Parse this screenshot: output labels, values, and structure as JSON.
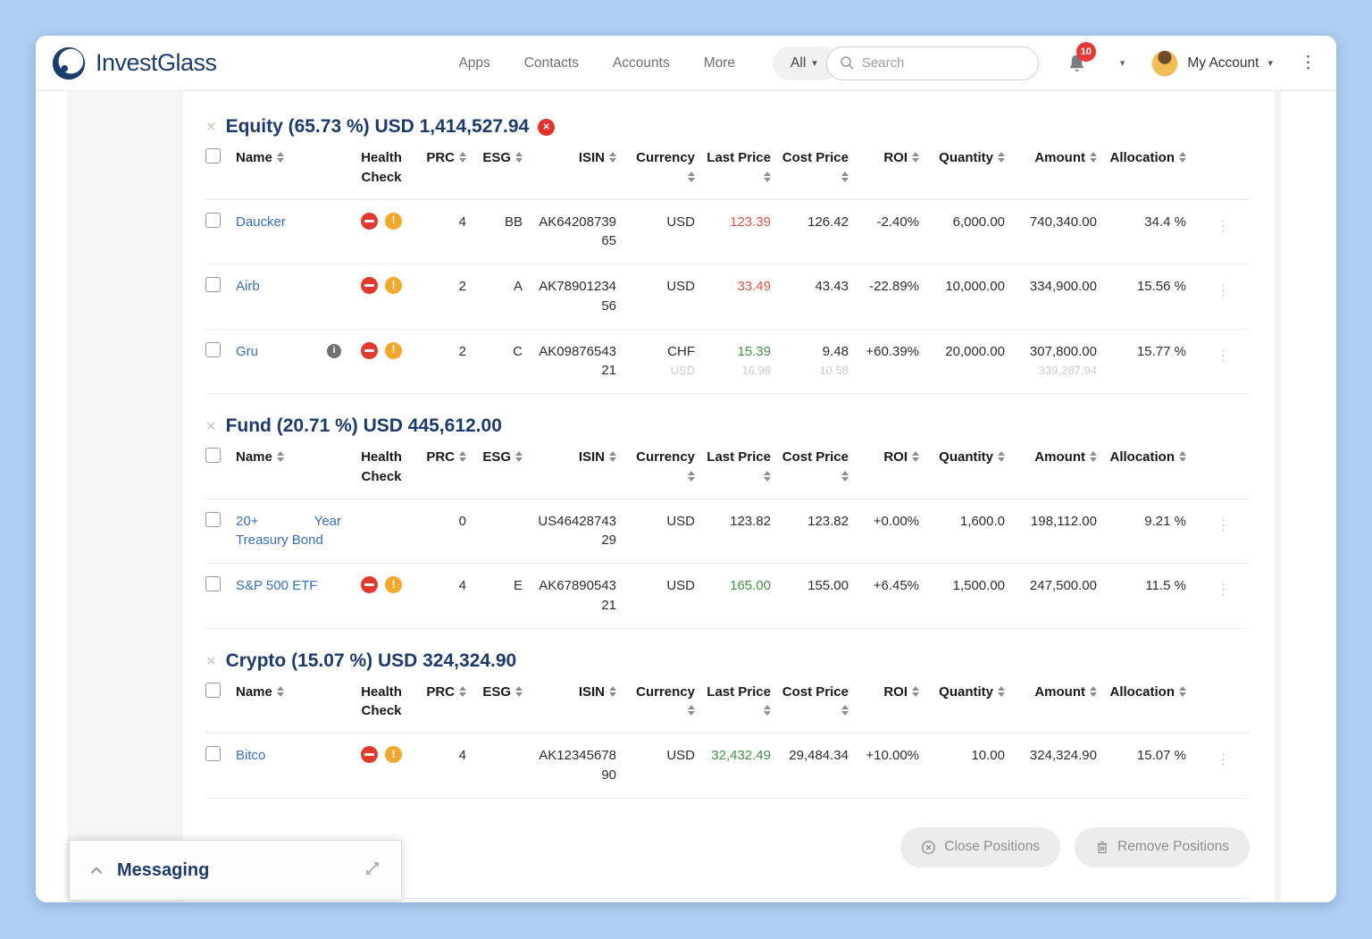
{
  "navbar": {
    "brand": "InvestGlass",
    "links": [
      "Apps",
      "Contacts",
      "Accounts",
      "More"
    ],
    "filter_label": "All",
    "search_placeholder": "Search",
    "notification_count": "10",
    "account_label": "My Account"
  },
  "columns": [
    {
      "key": "name",
      "label": "Name",
      "sortable": true
    },
    {
      "key": "health",
      "label": "Health Check",
      "sortable": false
    },
    {
      "key": "prc",
      "label": "PRC",
      "sortable": true
    },
    {
      "key": "esg",
      "label": "ESG",
      "sortable": true
    },
    {
      "key": "isin",
      "label": "ISIN",
      "sortable": true
    },
    {
      "key": "currency",
      "label": "Currency",
      "sortable": true
    },
    {
      "key": "last",
      "label": "Last Price",
      "sortable": true
    },
    {
      "key": "cost",
      "label": "Cost Price",
      "sortable": true
    },
    {
      "key": "roi",
      "label": "ROI",
      "sortable": true
    },
    {
      "key": "qty",
      "label": "Quantity",
      "sortable": true
    },
    {
      "key": "amount",
      "label": "Amount",
      "sortable": true
    },
    {
      "key": "alloc",
      "label": "Allocation",
      "sortable": true
    }
  ],
  "sections": [
    {
      "title": "Equity (65.73 %) USD 1,414,527.94",
      "has_close_icon": true,
      "rows": [
        {
          "name": "Daucker",
          "info": false,
          "health": [
            "block",
            "warning"
          ],
          "prc": "4",
          "esg": "BB",
          "isin": "AK6420873965",
          "currency": "USD",
          "currency_sub": "",
          "last": "123.39",
          "last_color": "red",
          "last_sub": "",
          "cost": "126.42",
          "cost_sub": "",
          "roi": "-2.40%",
          "qty": "6,000.00",
          "amount": "740,340.00",
          "amount_sub": "",
          "alloc": "34.4 %"
        },
        {
          "name": "Airb",
          "info": false,
          "health": [
            "block",
            "warning"
          ],
          "prc": "2",
          "esg": "A",
          "isin": "AK7890123456",
          "currency": "USD",
          "currency_sub": "",
          "last": "33.49",
          "last_color": "red",
          "last_sub": "",
          "cost": "43.43",
          "cost_sub": "",
          "roi": "-22.89%",
          "qty": "10,000.00",
          "amount": "334,900.00",
          "amount_sub": "",
          "alloc": "15.56 %"
        },
        {
          "name": "Gru",
          "info": true,
          "health": [
            "block",
            "warning"
          ],
          "prc": "2",
          "esg": "C",
          "isin": "AK0987654321",
          "currency": "CHF",
          "currency_sub": "USD",
          "last": "15.39",
          "last_color": "green",
          "last_sub": "16.96",
          "cost": "9.48",
          "cost_sub": "10.58",
          "roi": "+60.39%",
          "qty": "20,000.00",
          "amount": "307,800.00",
          "amount_sub": "339,287.94",
          "alloc": "15.77 %"
        }
      ]
    },
    {
      "title": "Fund (20.71 %) USD 445,612.00",
      "has_close_icon": false,
      "rows": [
        {
          "name": "20+ Year Treasury Bond",
          "info": false,
          "health": [],
          "prc": "0",
          "esg": "",
          "isin": "US4642874329",
          "currency": "USD",
          "currency_sub": "",
          "last": "123.82",
          "last_color": "",
          "last_sub": "",
          "cost": "123.82",
          "cost_sub": "",
          "roi": "+0.00%",
          "qty": "1,600.0",
          "amount": "198,112.00",
          "amount_sub": "",
          "alloc": "9.21 %"
        },
        {
          "name": "S&P 500 ETF",
          "info": false,
          "health": [
            "block",
            "warning"
          ],
          "prc": "4",
          "esg": "E",
          "isin": "AK6789054321",
          "currency": "USD",
          "currency_sub": "",
          "last": "165.00",
          "last_color": "green",
          "last_sub": "",
          "cost": "155.00",
          "cost_sub": "",
          "roi": "+6.45%",
          "qty": "1,500.00",
          "amount": "247,500.00",
          "amount_sub": "",
          "alloc": "11.5 %"
        }
      ]
    },
    {
      "title": "Crypto (15.07 %) USD 324,324.90",
      "has_close_icon": false,
      "rows": [
        {
          "name": "Bitco",
          "info": false,
          "health": [
            "block",
            "warning"
          ],
          "prc": "4",
          "esg": "",
          "isin": "AK1234567890",
          "currency": "USD",
          "currency_sub": "",
          "last": "32,432.49",
          "last_color": "green",
          "last_sub": "",
          "cost": "29,484.34",
          "cost_sub": "",
          "roi": "+10.00%",
          "qty": "10.00",
          "amount": "324,324.90",
          "amount_sub": "",
          "alloc": "15.07 %"
        }
      ]
    }
  ],
  "footer": {
    "close_label": "Close Positions",
    "remove_label": "Remove Positions"
  },
  "messaging": {
    "title": "Messaging"
  },
  "colors": {
    "brand_navy": "#1e3d6f",
    "negative": "#e0544a",
    "positive": "#429145",
    "badge_red": "#e53935",
    "health_block": "#e23a2e",
    "health_warning": "#f2a82d",
    "link_blue": "#366fc0"
  }
}
